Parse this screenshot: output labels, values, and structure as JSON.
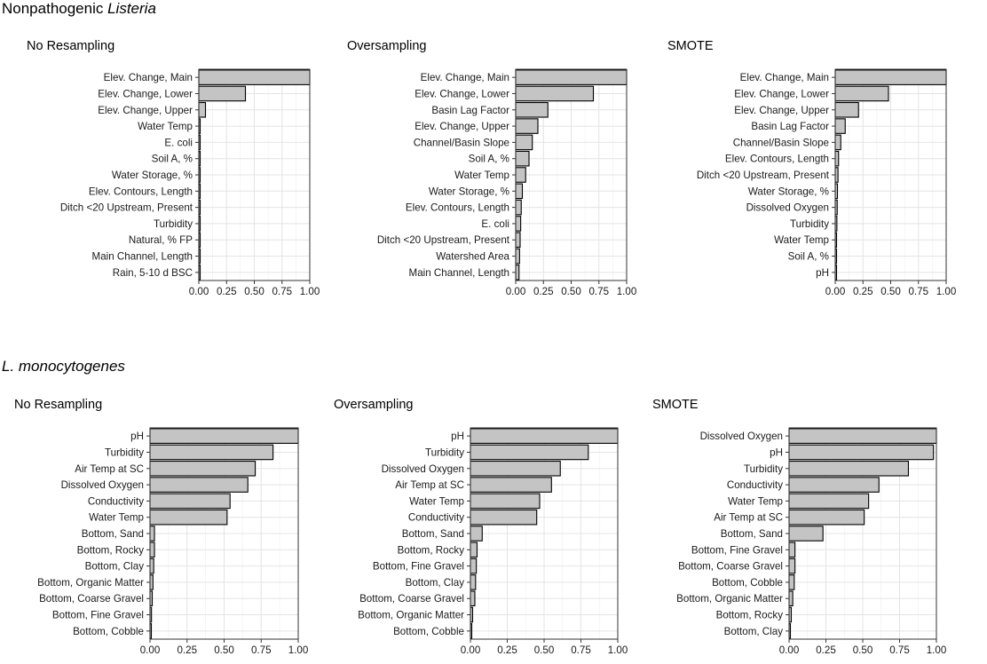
{
  "sections": [
    {
      "title_normal": "Nonpathogenic ",
      "title_italic": "Listeria"
    },
    {
      "title_normal": "",
      "title_italic": "L.  monocytogenes"
    }
  ],
  "chart_data": [
    {
      "type": "bar",
      "orientation": "horizontal",
      "group": "Nonpathogenic Listeria",
      "title": "No Resampling",
      "categories": [
        "Elev. Change, Main",
        "Elev. Change, Lower",
        "Elev. Change, Upper",
        "Water Temp",
        "E. coli",
        "Soil A, %",
        "Water Storage, %",
        "Elev. Contours, Length",
        "Ditch <20 Upstream, Present",
        "Turbidity",
        "Natural, % FP",
        "Main Channel, Length",
        "Rain, 5-10 d BSC"
      ],
      "values": [
        1.0,
        0.42,
        0.06,
        0.01,
        0.008,
        0.007,
        0.006,
        0.005,
        0.005,
        0.004,
        0.004,
        0.003,
        0.003
      ],
      "xlim": [
        0,
        1
      ],
      "xticks": [
        "0.00",
        "0.25",
        "0.50",
        "0.75",
        "1.00"
      ],
      "xlabel": "",
      "ylabel": "",
      "grid": true
    },
    {
      "type": "bar",
      "orientation": "horizontal",
      "group": "Nonpathogenic Listeria",
      "title": "Oversampling",
      "categories": [
        "Elev. Change, Main",
        "Elev. Change, Lower",
        "Basin Lag Factor",
        "Elev. Change, Upper",
        "Channel/Basin Slope",
        "Soil A, %",
        "Water Temp",
        "Water Storage, %",
        "Elev. Contours, Length",
        "E. coli",
        "Ditch <20 Upstream, Present",
        "Watershed Area",
        "Main Channel, Length"
      ],
      "values": [
        1.0,
        0.7,
        0.29,
        0.2,
        0.15,
        0.12,
        0.09,
        0.06,
        0.05,
        0.045,
        0.04,
        0.035,
        0.03
      ],
      "xlim": [
        0,
        1
      ],
      "xticks": [
        "0.00",
        "0.25",
        "0.50",
        "0.75",
        "1.00"
      ],
      "xlabel": "",
      "ylabel": "",
      "grid": true
    },
    {
      "type": "bar",
      "orientation": "horizontal",
      "group": "Nonpathogenic Listeria",
      "title": "SMOTE",
      "categories": [
        "Elev. Change, Main",
        "Elev. Change, Lower",
        "Elev. Change, Upper",
        "Basin Lag Factor",
        "Channel/Basin Slope",
        "Elev. Contours, Length",
        "Ditch <20 Upstream, Present",
        "Water Storage, %",
        "Dissolved Oxygen",
        "Turbidity",
        "Water Temp",
        "Soil A, %",
        "pH"
      ],
      "values": [
        1.0,
        0.48,
        0.21,
        0.09,
        0.05,
        0.03,
        0.025,
        0.02,
        0.018,
        0.015,
        0.012,
        0.01,
        0.008
      ],
      "xlim": [
        0,
        1
      ],
      "xticks": [
        "0.00",
        "0.25",
        "0.50",
        "0.75",
        "1.00"
      ],
      "xlabel": "",
      "ylabel": "",
      "grid": true
    },
    {
      "type": "bar",
      "orientation": "horizontal",
      "group": "L. monocytogenes",
      "title": "No Resampling",
      "categories": [
        "pH",
        "Turbidity",
        "Air Temp at SC",
        "Dissolved Oxygen",
        "Conductivity",
        "Water Temp",
        "Bottom, Sand",
        "Bottom, Rocky",
        "Bottom, Clay",
        "Bottom, Organic Matter",
        "Bottom, Coarse Gravel",
        "Bottom, Fine Gravel",
        "Bottom, Cobble"
      ],
      "values": [
        1.0,
        0.83,
        0.71,
        0.66,
        0.54,
        0.52,
        0.03,
        0.03,
        0.025,
        0.02,
        0.015,
        0.01,
        0.008
      ],
      "xlim": [
        0,
        1
      ],
      "xticks": [
        "0.00",
        "0.25",
        "0.50",
        "0.75",
        "1.00"
      ],
      "xlabel": "",
      "ylabel": "",
      "grid": true
    },
    {
      "type": "bar",
      "orientation": "horizontal",
      "group": "L. monocytogenes",
      "title": "Oversampling",
      "categories": [
        "pH",
        "Turbidity",
        "Dissolved Oxygen",
        "Air Temp at SC",
        "Water Temp",
        "Conductivity",
        "Bottom, Sand",
        "Bottom, Rocky",
        "Bottom, Fine Gravel",
        "Bottom, Clay",
        "Bottom, Coarse Gravel",
        "Bottom, Organic Matter",
        "Bottom, Cobble"
      ],
      "values": [
        1.0,
        0.8,
        0.61,
        0.55,
        0.47,
        0.45,
        0.08,
        0.045,
        0.04,
        0.035,
        0.03,
        0.015,
        0.008
      ],
      "xlim": [
        0,
        1
      ],
      "xticks": [
        "0.00",
        "0.25",
        "0.50",
        "0.75",
        "1.00"
      ],
      "xlabel": "",
      "ylabel": "",
      "grid": true
    },
    {
      "type": "bar",
      "orientation": "horizontal",
      "group": "L. monocytogenes",
      "title": "SMOTE",
      "categories": [
        "Dissolved Oxygen",
        "pH",
        "Turbidity",
        "Conductivity",
        "Water Temp",
        "Air Temp at SC",
        "Bottom, Sand",
        "Bottom, Fine Gravel",
        "Bottom, Coarse Gravel",
        "Bottom, Cobble",
        "Bottom, Organic Matter",
        "Bottom, Rocky",
        "Bottom, Clay"
      ],
      "values": [
        1.0,
        0.98,
        0.81,
        0.61,
        0.54,
        0.51,
        0.23,
        0.04,
        0.04,
        0.035,
        0.025,
        0.015,
        0.008
      ],
      "xlim": [
        0,
        1
      ],
      "xticks": [
        "0.00",
        "0.25",
        "0.50",
        "0.75",
        "1.00"
      ],
      "xlabel": "",
      "ylabel": "",
      "grid": true
    }
  ]
}
